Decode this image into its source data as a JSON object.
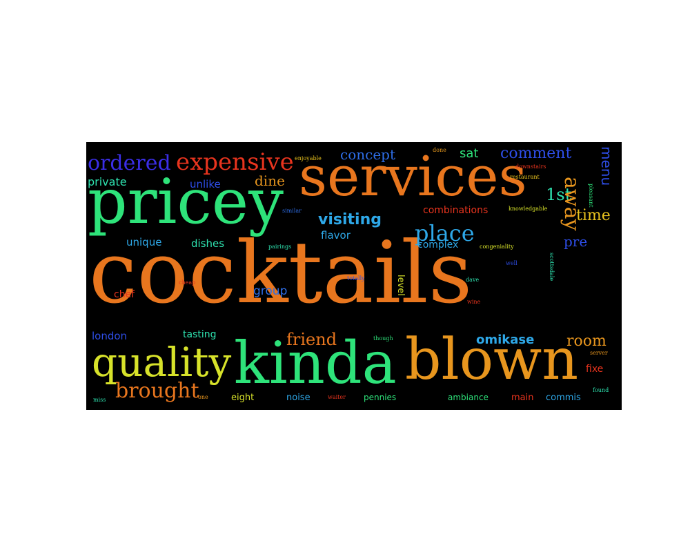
{
  "words": {
    "cocktails": {
      "text": "cocktails",
      "color": "#e8761e"
    },
    "services": {
      "text": "services",
      "color": "#e8761e"
    },
    "pricey": {
      "text": "pricey",
      "color": "#2ee37a"
    },
    "kinda": {
      "text": "kinda",
      "color": "#2ee37a"
    },
    "blown": {
      "text": "blown",
      "color": "#e8961e"
    },
    "quality": {
      "text": "quality",
      "color": "#d7e22a"
    },
    "expensive": {
      "text": "expensive",
      "color": "#e8341e"
    },
    "ordered": {
      "text": "ordered",
      "color": "#3b2ee8"
    },
    "private": {
      "text": "private",
      "color": "#2ee3b0"
    },
    "unlike": {
      "text": "unlike",
      "color": "#2e4ee8"
    },
    "dine": {
      "text": "dine",
      "color": "#e8961e"
    },
    "concept": {
      "text": "concept",
      "color": "#2e6ee8"
    },
    "done": {
      "text": "done",
      "color": "#e89a1e"
    },
    "sat": {
      "text": "sat",
      "color": "#2ee37a"
    },
    "comment": {
      "text": "comment",
      "color": "#2e4ee8"
    },
    "menu": {
      "text": "menu",
      "color": "#2e4ee8"
    },
    "downstairs": {
      "text": "downstairs",
      "color": "#e8341e"
    },
    "restaurant": {
      "text": "restaurant",
      "color": "#e8c21e"
    },
    "pleasant": {
      "text": "pleasant",
      "color": "#2ee37a"
    },
    "enjoyable": {
      "text": "enjoyable",
      "color": "#e8c21e"
    },
    "1st": {
      "text": "1st",
      "color": "#2ee3b0"
    },
    "away": {
      "text": "away",
      "color": "#e8961e"
    },
    "combinations": {
      "text": "combinations",
      "color": "#e8341e"
    },
    "knowledgable": {
      "text": "knowledgable",
      "color": "#d7e22a"
    },
    "similar": {
      "text": "similar",
      "color": "#2e6ee8"
    },
    "visiting": {
      "text": "visiting",
      "color": "#2ea8e8"
    },
    "place": {
      "text": "place",
      "color": "#2ea8e8"
    },
    "time": {
      "text": "time",
      "color": "#e8c21e"
    },
    "unique": {
      "text": "unique",
      "color": "#2ea8e8"
    },
    "dishes": {
      "text": "dishes",
      "color": "#2ee3b0"
    },
    "pairings": {
      "text": "pairings",
      "color": "#2ee3b0"
    },
    "flavor": {
      "text": "flavor",
      "color": "#2ea8e8"
    },
    "complex": {
      "text": "complex",
      "color": "#2ea8e8"
    },
    "congeniality": {
      "text": "congeniality",
      "color": "#d7e22a"
    },
    "pre": {
      "text": "pre",
      "color": "#2e4ee8"
    },
    "well": {
      "text": "well",
      "color": "#2e4ee8"
    },
    "scottsdale": {
      "text": "scottsdale",
      "color": "#2ee3b0"
    },
    "cheap": {
      "text": "cheap",
      "color": "#e8341e"
    },
    "chef": {
      "text": "chef",
      "color": "#e8341e"
    },
    "totally": {
      "text": "totally",
      "color": "#2e4ee8"
    },
    "group": {
      "text": "group",
      "color": "#2e6ee8"
    },
    "level": {
      "text": "level",
      "color": "#d7e22a"
    },
    "dave": {
      "text": "dave",
      "color": "#2ee3b0"
    },
    "wine": {
      "text": "wine",
      "color": "#e8341e"
    },
    "london": {
      "text": "london",
      "color": "#2e4ee8"
    },
    "tasting": {
      "text": "tasting",
      "color": "#2ee3b0"
    },
    "friend": {
      "text": "friend",
      "color": "#e8761e"
    },
    "though": {
      "text": "though",
      "color": "#2ee37a"
    },
    "omikase": {
      "text": "omikase",
      "color": "#2ea8e8"
    },
    "room": {
      "text": "room",
      "color": "#e8961e"
    },
    "server": {
      "text": "server",
      "color": "#e8961e"
    },
    "fixe": {
      "text": "fixe",
      "color": "#e8341e"
    },
    "found": {
      "text": "found",
      "color": "#2ee3b0"
    },
    "brought": {
      "text": "brought",
      "color": "#e8761e"
    },
    "miss": {
      "text": "miss",
      "color": "#2ee3b0"
    },
    "one": {
      "text": "one",
      "color": "#e8961e"
    },
    "eight": {
      "text": "eight",
      "color": "#d7e22a"
    },
    "noise": {
      "text": "noise",
      "color": "#2ea8e8"
    },
    "waiter": {
      "text": "waiter",
      "color": "#e8341e"
    },
    "pennies": {
      "text": "pennies",
      "color": "#2ee37a"
    },
    "ambiance": {
      "text": "ambiance",
      "color": "#2ee37a"
    },
    "main": {
      "text": "main",
      "color": "#e8341e"
    },
    "commis": {
      "text": "commis",
      "color": "#2ea8e8"
    }
  }
}
